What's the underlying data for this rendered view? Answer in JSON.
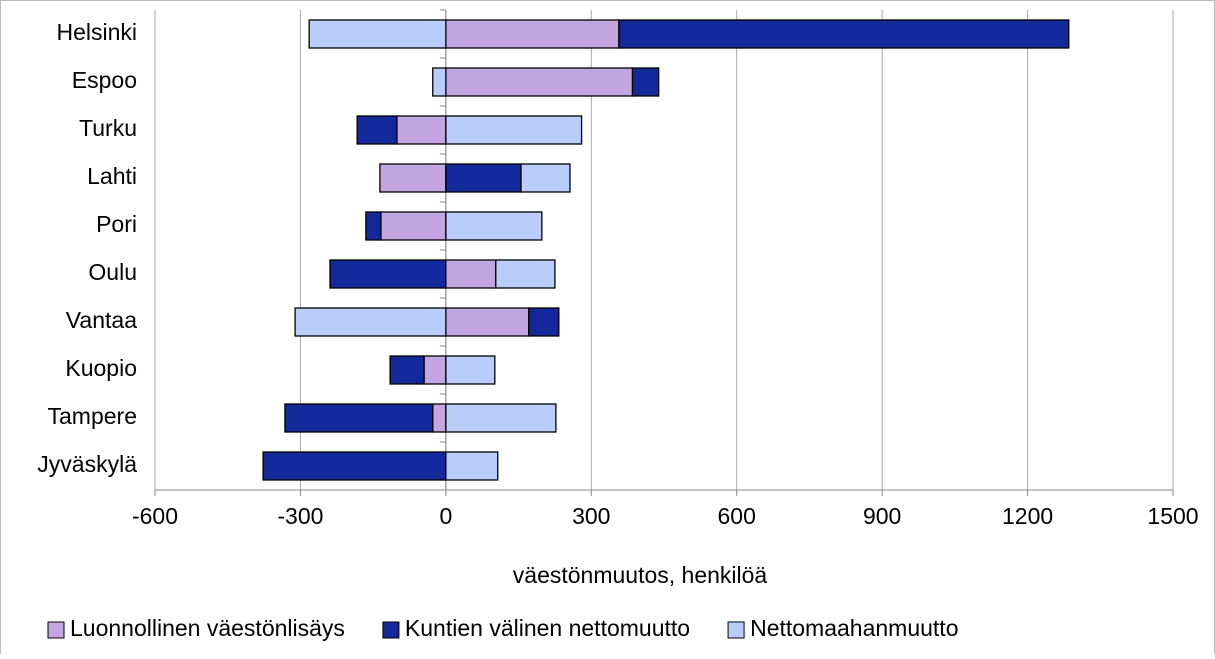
{
  "chart_data": {
    "type": "stacked-bar-horizontal",
    "x_label": "väestönmuutos, henkilöä",
    "categories": [
      "Helsinki",
      "Espoo",
      "Turku",
      "Lahti",
      "Pori",
      "Oulu",
      "Vantaa",
      "Kuopio",
      "Tampere",
      "Jyväskylä"
    ],
    "series": [
      {
        "name": "Luonnollinen väestönlisäys",
        "color": "#c3a6e0",
        "values": [
          357,
          385,
          -101,
          -136,
          -134,
          103,
          171,
          -45,
          -27,
          0
        ]
      },
      {
        "name": "Kuntien välinen nettomuutto",
        "color": "#13289a",
        "values": [
          928,
          54,
          -82,
          155,
          -31,
          -239,
          62,
          -70,
          -305,
          -377
        ]
      },
      {
        "name": "Nettomaahanmuutto",
        "color": "#b9cdfb",
        "values": [
          -282,
          -27,
          280,
          101,
          198,
          122,
          -311,
          101,
          227,
          107
        ]
      }
    ],
    "xlim": [
      -600,
      1500
    ],
    "xticks": [
      -600,
      -300,
      0,
      300,
      600,
      900,
      1200,
      1500
    ],
    "grid": true,
    "legend": "bottom"
  }
}
